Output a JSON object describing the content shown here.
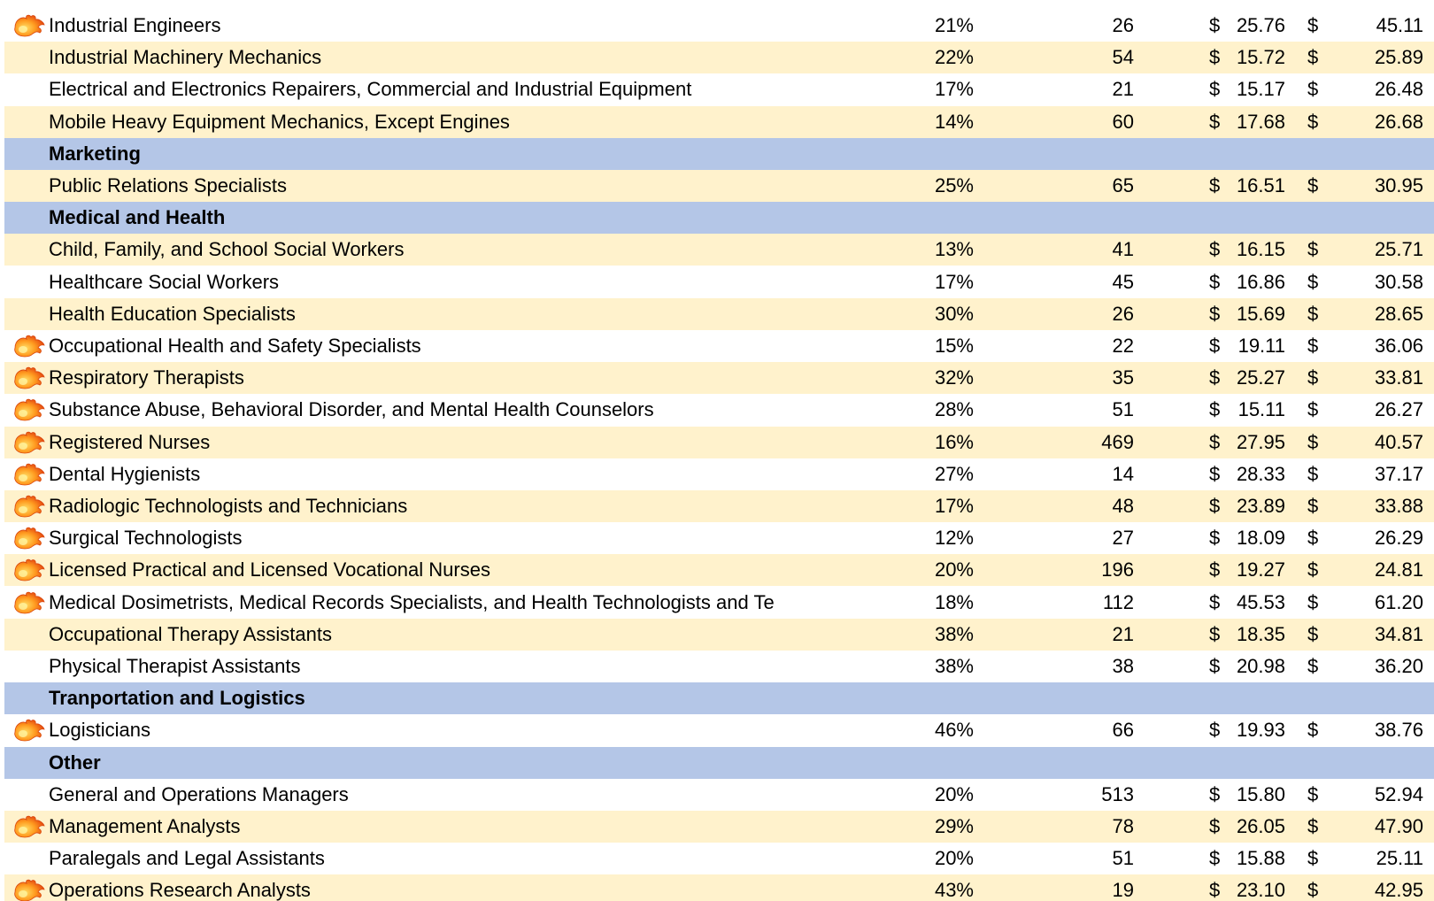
{
  "currency_symbol": "$",
  "table": {
    "rows": [
      {
        "cells": [
          "Industrial Engineers",
          "21%",
          "26",
          "25.76",
          "45.11"
        ],
        "hot": true
      },
      {
        "cells": [
          "Industrial Machinery Mechanics",
          "22%",
          "54",
          "15.72",
          "25.89"
        ],
        "hot": false
      },
      {
        "cells": [
          "Electrical and Electronics Repairers, Commercial and Industrial Equipment",
          "17%",
          "21",
          "15.17",
          "26.48"
        ],
        "hot": false
      },
      {
        "cells": [
          "Mobile Heavy Equipment Mechanics, Except Engines",
          "14%",
          "60",
          "17.68",
          "26.68"
        ],
        "hot": false
      },
      {
        "section": "Marketing"
      },
      {
        "cells": [
          "Public Relations Specialists",
          "25%",
          "65",
          "16.51",
          "30.95"
        ],
        "hot": false
      },
      {
        "section": "Medical and Health"
      },
      {
        "cells": [
          "Child, Family, and School Social Workers",
          "13%",
          "41",
          "16.15",
          "25.71"
        ],
        "hot": false
      },
      {
        "cells": [
          "Healthcare Social Workers",
          "17%",
          "45",
          "16.86",
          "30.58"
        ],
        "hot": false
      },
      {
        "cells": [
          "Health Education Specialists",
          "30%",
          "26",
          "15.69",
          "28.65"
        ],
        "hot": false
      },
      {
        "cells": [
          "Occupational Health and Safety Specialists",
          "15%",
          "22",
          "19.11",
          "36.06"
        ],
        "hot": true
      },
      {
        "cells": [
          "Respiratory Therapists",
          "32%",
          "35",
          "25.27",
          "33.81"
        ],
        "hot": true
      },
      {
        "cells": [
          "Substance Abuse, Behavioral Disorder, and Mental Health Counselors",
          "28%",
          "51",
          "15.11",
          "26.27"
        ],
        "hot": true
      },
      {
        "cells": [
          "Registered Nurses",
          "16%",
          "469",
          "27.95",
          "40.57"
        ],
        "hot": true
      },
      {
        "cells": [
          "Dental Hygienists",
          "27%",
          "14",
          "28.33",
          "37.17"
        ],
        "hot": true
      },
      {
        "cells": [
          "Radiologic Technologists and Technicians",
          "17%",
          "48",
          "23.89",
          "33.88"
        ],
        "hot": true
      },
      {
        "cells": [
          "Surgical Technologists",
          "12%",
          "27",
          "18.09",
          "26.29"
        ],
        "hot": true
      },
      {
        "cells": [
          "Licensed Practical and Licensed Vocational Nurses",
          "20%",
          "196",
          "19.27",
          "24.81"
        ],
        "hot": true
      },
      {
        "cells": [
          "Medical Dosimetrists, Medical Records Specialists, and Health Technologists and Te",
          "18%",
          "112",
          "45.53",
          "61.20"
        ],
        "hot": true
      },
      {
        "cells": [
          "Occupational Therapy Assistants",
          "38%",
          "21",
          "18.35",
          "34.81"
        ],
        "hot": false
      },
      {
        "cells": [
          "Physical Therapist Assistants",
          "38%",
          "38",
          "20.98",
          "36.20"
        ],
        "hot": false
      },
      {
        "section": "Tranportation and Logistics"
      },
      {
        "cells": [
          "Logisticians",
          "46%",
          "66",
          "19.93",
          "38.76"
        ],
        "hot": true
      },
      {
        "section": "Other"
      },
      {
        "cells": [
          "General and Operations Managers",
          "20%",
          "513",
          "15.80",
          "52.94"
        ],
        "hot": false
      },
      {
        "cells": [
          "Management Analysts",
          "29%",
          "78",
          "26.05",
          "47.90"
        ],
        "hot": true
      },
      {
        "cells": [
          "Paralegals and Legal Assistants",
          "20%",
          "51",
          "15.88",
          "25.11"
        ],
        "hot": false
      },
      {
        "cells": [
          "Operations Research Analysts",
          "43%",
          "19",
          "23.10",
          "42.95"
        ],
        "hot": true
      }
    ]
  }
}
